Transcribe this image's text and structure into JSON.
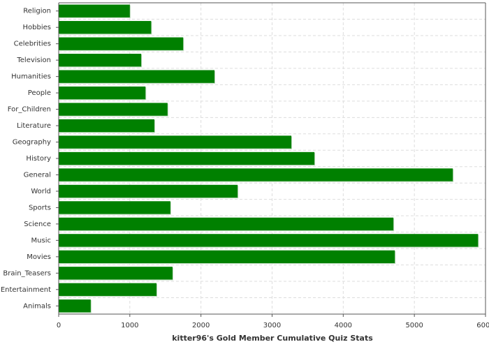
{
  "chart_data": {
    "type": "bar",
    "orientation": "horizontal",
    "xlabel": "kitter96's Gold Member Cumulative Quiz Stats",
    "categories": [
      "Religion",
      "Hobbies",
      "Celebrities",
      "Television",
      "Humanities",
      "People",
      "For_Children",
      "Literature",
      "Geography",
      "History",
      "General",
      "World",
      "Sports",
      "Science",
      "Music",
      "Movies",
      "Brain_Teasers",
      "Entertainment",
      "Animals"
    ],
    "values": [
      1000,
      1300,
      1750,
      1160,
      2190,
      1220,
      1530,
      1345,
      3270,
      3595,
      5540,
      2515,
      1570,
      4705,
      5895,
      4725,
      1600,
      1375,
      450
    ],
    "color": "#008000",
    "xlim": [
      0,
      6000
    ],
    "xticks": [
      0,
      1000,
      2000,
      3000,
      4000,
      5000,
      6000
    ],
    "grid": true
  }
}
